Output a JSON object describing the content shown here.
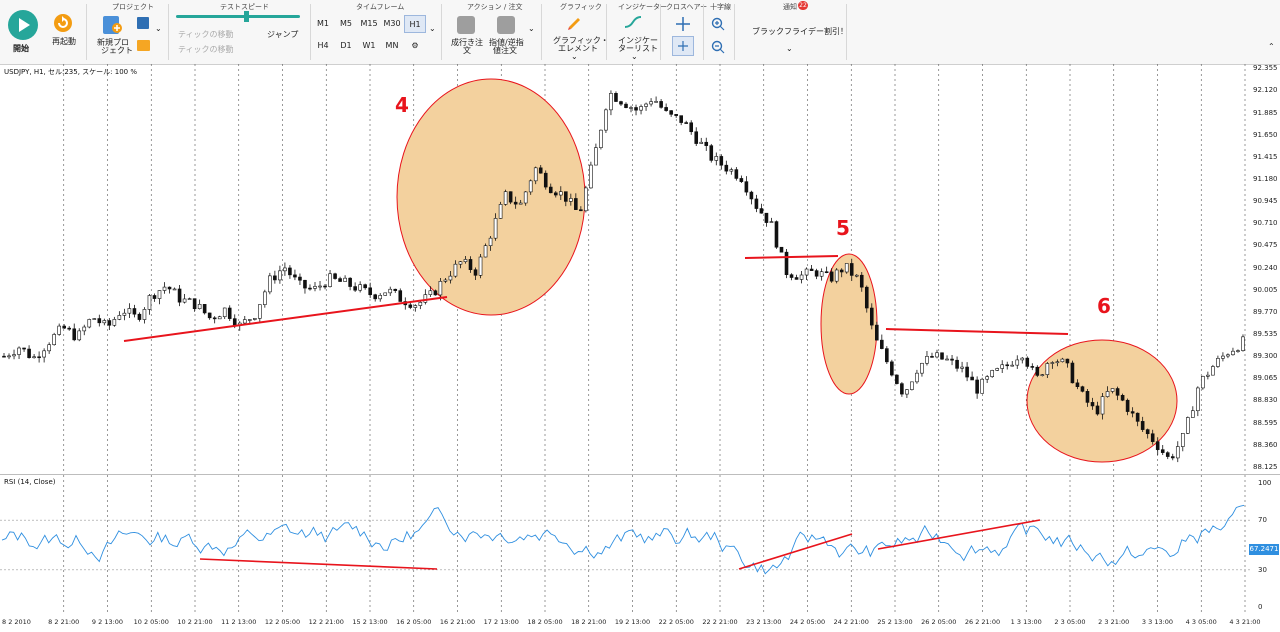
{
  "toolbar": {
    "start_label": "開始",
    "restart_label": "再起動",
    "groups": {
      "project": "プロジェクト",
      "test_speed": "テストスピード",
      "timeframe": "タイムフレーム",
      "action": "アクション / 注文",
      "graphic": "グラフィック",
      "indicator": "インジケーター",
      "crosshair": "クロスヘアー",
      "zoom": "十字線",
      "notice": "通知"
    },
    "new_project_label_1": "新規プロ",
    "new_project_label_2": "ジェクト",
    "jump_label": "ジャンプ",
    "skip_label_1": "ティックの移動",
    "skip_label_2": "ティックの移動",
    "timeframes": [
      "M1",
      "M5",
      "M15",
      "M30",
      "H1",
      "H4",
      "D1",
      "W1",
      "MN"
    ],
    "active_timeframe": "H1",
    "market_order_label_1": "成行き注",
    "market_order_label_2": "文",
    "pending_order_label_1": "指値/逆指",
    "pending_order_label_2": "値注文",
    "graphic_label_1": "グラフィック・",
    "graphic_label_2": "エレメント",
    "indicator_label_1": "インジケー",
    "indicator_label_2": "ターリスト",
    "notice_badge": "22",
    "notice_text": "ブラックフライデー割引！"
  },
  "chart": {
    "title": "USDJPY, H1, セル:235, スケール: 100 %",
    "rsi_title": "RSI (14, Close)",
    "rsi_current": "67.2471",
    "annotations": [
      "4",
      "5",
      "6"
    ],
    "colors": {
      "candle": "#111111",
      "rsi_line": "#2f8fe0",
      "trendline": "#e8141c",
      "highlight": "#f3d19e",
      "annotation": "#e8141c"
    }
  },
  "chart_data": {
    "type": "candlestick",
    "symbol": "USDJPY",
    "timeframe": "H1",
    "y_ticks": [
      "92.355",
      "92.120",
      "91.885",
      "91.650",
      "91.415",
      "91.180",
      "90.945",
      "90.710",
      "90.475",
      "90.240",
      "90.005",
      "89.770",
      "89.535",
      "89.300",
      "89.065",
      "88.830",
      "88.595",
      "88.360",
      "88.125"
    ],
    "rsi_ticks": [
      "100",
      "70",
      "30",
      "0"
    ],
    "x_ticks": [
      "8 2 2010",
      "8 2 21:00",
      "9 2 13:00",
      "10 2 05:00",
      "10 2 21:00",
      "11 2 13:00",
      "12 2 05:00",
      "12 2 21:00",
      "15 2 13:00",
      "16 2 05:00",
      "16 2 21:00",
      "17 2 13:00",
      "18 2 05:00",
      "18 2 21:00",
      "19 2 13:00",
      "22 2 05:00",
      "22 2 21:00",
      "23 2 13:00",
      "24 2 05:00",
      "24 2 21:00",
      "25 2 13:00",
      "26 2 05:00",
      "26 2 21:00",
      "1 3 13:00",
      "2 3 05:00",
      "2 3 21:00",
      "3 3 13:00",
      "4 3 05:00",
      "4 3 21:00"
    ],
    "close_path": [
      89.3,
      89.4,
      89.28,
      89.45,
      89.6,
      89.5,
      89.72,
      89.6,
      89.8,
      89.7,
      89.95,
      90.05,
      89.9,
      89.85,
      89.7,
      89.8,
      89.62,
      89.75,
      90.1,
      90.25,
      90.05,
      90.0,
      90.12,
      90.08,
      90.02,
      89.95,
      90.0,
      89.9,
      89.85,
      89.95,
      90.15,
      90.3,
      90.2,
      90.6,
      91.0,
      90.9,
      91.3,
      91.1,
      91.0,
      90.8,
      91.4,
      92.1,
      92.0,
      91.9,
      92.05,
      91.85,
      91.8,
      91.6,
      91.4,
      91.3,
      91.2,
      90.9,
      90.7,
      90.2,
      90.15,
      90.2,
      90.12,
      90.25,
      90.1,
      89.5,
      89.2,
      88.9,
      89.2,
      89.3,
      89.25,
      89.15,
      88.95,
      89.1,
      89.2,
      89.35,
      89.05,
      89.3,
      89.2,
      88.9,
      88.7,
      88.95,
      88.8,
      88.55,
      88.4,
      88.2,
      88.45,
      89.0,
      89.2,
      89.35,
      89.45
    ]
  }
}
